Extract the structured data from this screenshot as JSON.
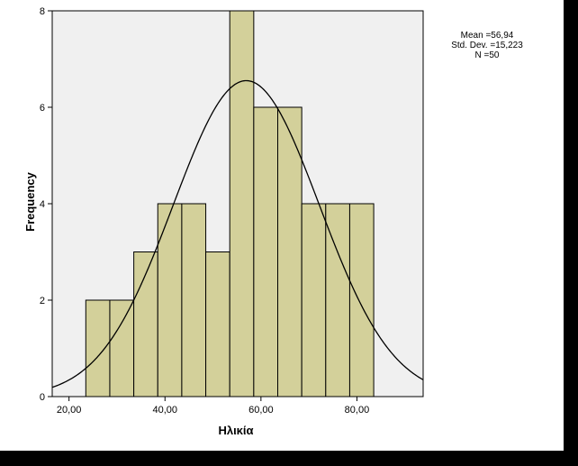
{
  "chart_data": {
    "type": "bar",
    "subtype": "histogram",
    "xlabel": "Ηλικία",
    "ylabel": "Frequency",
    "bins": [
      {
        "from": 23.5,
        "to": 28.5,
        "count": 2
      },
      {
        "from": 28.5,
        "to": 33.5,
        "count": 2
      },
      {
        "from": 33.5,
        "to": 38.5,
        "count": 3
      },
      {
        "from": 38.5,
        "to": 43.5,
        "count": 4
      },
      {
        "from": 43.5,
        "to": 48.5,
        "count": 4
      },
      {
        "from": 48.5,
        "to": 53.5,
        "count": 3
      },
      {
        "from": 53.5,
        "to": 58.5,
        "count": 8
      },
      {
        "from": 58.5,
        "to": 63.5,
        "count": 6
      },
      {
        "from": 63.5,
        "to": 68.5,
        "count": 6
      },
      {
        "from": 68.5,
        "to": 73.5,
        "count": 4
      },
      {
        "from": 73.5,
        "to": 78.5,
        "count": 4
      },
      {
        "from": 78.5,
        "to": 83.5,
        "count": 4
      }
    ],
    "xlim": [
      16.5,
      93.8
    ],
    "ylim": [
      0,
      8
    ],
    "xticks": [
      20,
      40,
      60,
      80
    ],
    "xtick_labels": [
      "20,00",
      "40,00",
      "60,00",
      "80,00"
    ],
    "yticks": [
      0,
      2,
      4,
      6,
      8
    ],
    "ytick_labels": [
      "0",
      "2",
      "4",
      "6",
      "8"
    ],
    "normal_curve": {
      "mean": 56.94,
      "std": 15.223,
      "n": 50,
      "bin_width": 5
    },
    "stats_lines": [
      "Mean =56,94",
      "Std. Dev. =15,223",
      "N =50"
    ],
    "colors": {
      "bar_fill": "#d3d09a",
      "bar_stroke": "#000000",
      "plot_bg": "#f0f0f0",
      "curve": "#000000"
    }
  }
}
